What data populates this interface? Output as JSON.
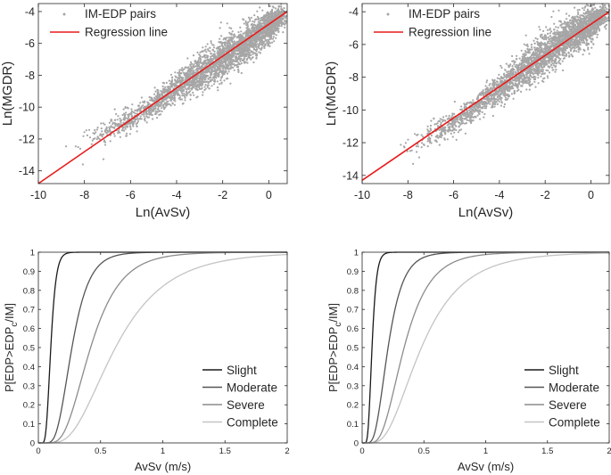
{
  "figure": {
    "panel_count": 4
  },
  "chart_data": [
    {
      "type": "scatter",
      "id": "scatter-left",
      "title": "",
      "xlabel": "Ln(AvSv)",
      "ylabel": "Ln(MGDR)",
      "xlim": [
        -10,
        0.8
      ],
      "ylim": [
        -14.8,
        -3.5
      ],
      "xticks": [
        -10,
        -8,
        -6,
        -4,
        -2,
        0
      ],
      "yticks": [
        -14,
        -12,
        -10,
        -8,
        -6,
        -4
      ],
      "legend": {
        "location": "top-left",
        "entries": [
          "IM-EDP pairs",
          "Regression line"
        ]
      },
      "regression_line": {
        "points": [
          [
            -10,
            -14.8
          ],
          [
            0.8,
            -4.0
          ]
        ],
        "color": "#e81b1b"
      },
      "scatter_cloud": {
        "description_free": true,
        "trend_points": [
          [
            -8.3,
            -12.6
          ],
          [
            -7.0,
            -11.5
          ],
          [
            -6.0,
            -10.8
          ],
          [
            -5.0,
            -9.8
          ],
          [
            -4.0,
            -8.8
          ],
          [
            -3.0,
            -7.9
          ],
          [
            -2.0,
            -7.0
          ],
          [
            -1.0,
            -6.0
          ],
          [
            0.0,
            -5.0
          ],
          [
            0.5,
            -4.3
          ]
        ],
        "spread": [
          1.2,
          1.0,
          0.9,
          0.9,
          1.0,
          1.3,
          1.5,
          1.4,
          1.2,
          0.8
        ],
        "color": "#a6a6a6"
      }
    },
    {
      "type": "scatter",
      "id": "scatter-right",
      "title": "",
      "xlabel": "Ln(AvSv)",
      "ylabel": "Ln(MGDR)",
      "xlim": [
        -10,
        0.8
      ],
      "ylim": [
        -14.5,
        -3.5
      ],
      "xticks": [
        -10,
        -8,
        -6,
        -4,
        -2,
        0
      ],
      "yticks": [
        -14,
        -12,
        -10,
        -8,
        -6,
        -4
      ],
      "legend": {
        "location": "top-left",
        "entries": [
          "IM-EDP pairs",
          "Regression line"
        ]
      },
      "regression_line": {
        "points": [
          [
            -10,
            -14.3
          ],
          [
            0.8,
            -4.0
          ]
        ],
        "color": "#e81b1b"
      },
      "scatter_cloud": {
        "trend_points": [
          [
            -8.2,
            -12.5
          ],
          [
            -7.0,
            -11.6
          ],
          [
            -6.0,
            -10.8
          ],
          [
            -5.0,
            -9.8
          ],
          [
            -4.0,
            -8.7
          ],
          [
            -3.0,
            -7.6
          ],
          [
            -2.0,
            -6.6
          ],
          [
            -1.0,
            -5.6
          ],
          [
            0.0,
            -4.8
          ],
          [
            0.5,
            -4.2
          ]
        ],
        "spread": [
          1.2,
          1.0,
          0.9,
          0.9,
          1.1,
          1.3,
          1.5,
          1.3,
          1.2,
          0.8
        ],
        "color": "#a6a6a6"
      }
    },
    {
      "type": "line",
      "id": "fragility-left",
      "title": "",
      "xlabel": "AvSv (m/s)",
      "ylabel": "P[EDP>EDP",
      "ylabel_sub": "c",
      "ylabel_tail": "/IM]",
      "xlim": [
        0,
        2
      ],
      "ylim": [
        0,
        1
      ],
      "xticks": [
        "0",
        "0.5",
        "1",
        "1.5",
        "2"
      ],
      "yticks": [
        "0",
        "0.1",
        "0.2",
        "0.3",
        "0.4",
        "0.5",
        "0.6",
        "0.7",
        "0.8",
        "0.9",
        "1"
      ],
      "legend": {
        "location": "bottom-right"
      },
      "series": [
        {
          "name": "Slight",
          "median": 0.1,
          "beta": 0.33,
          "color": "#1a1a1a"
        },
        {
          "name": "Moderate",
          "median": 0.27,
          "beta": 0.4,
          "color": "#555555"
        },
        {
          "name": "Severe",
          "median": 0.42,
          "beta": 0.45,
          "color": "#8c8c8c"
        },
        {
          "name": "Complete",
          "median": 0.62,
          "beta": 0.52,
          "color": "#c4c4c4"
        }
      ]
    },
    {
      "type": "line",
      "id": "fragility-right",
      "title": "",
      "xlabel": "AvSv (m/s)",
      "ylabel": "P[EDP>EDP",
      "ylabel_sub": "c",
      "ylabel_tail": "/IM]",
      "xlim": [
        0,
        2
      ],
      "ylim": [
        0,
        1
      ],
      "xticks": [
        "0",
        "0.5",
        "1",
        "1.5",
        "2"
      ],
      "yticks": [
        "0",
        "0.1",
        "0.2",
        "0.3",
        "0.4",
        "0.5",
        "0.6",
        "0.7",
        "0.8",
        "0.9",
        "1"
      ],
      "legend": {
        "location": "bottom-right"
      },
      "series": [
        {
          "name": "Slight",
          "median": 0.08,
          "beta": 0.35,
          "color": "#1a1a1a"
        },
        {
          "name": "Moderate",
          "median": 0.21,
          "beta": 0.45,
          "color": "#555555"
        },
        {
          "name": "Severe",
          "median": 0.34,
          "beta": 0.48,
          "color": "#8c8c8c"
        },
        {
          "name": "Complete",
          "median": 0.48,
          "beta": 0.55,
          "color": "#c4c4c4"
        }
      ]
    }
  ]
}
